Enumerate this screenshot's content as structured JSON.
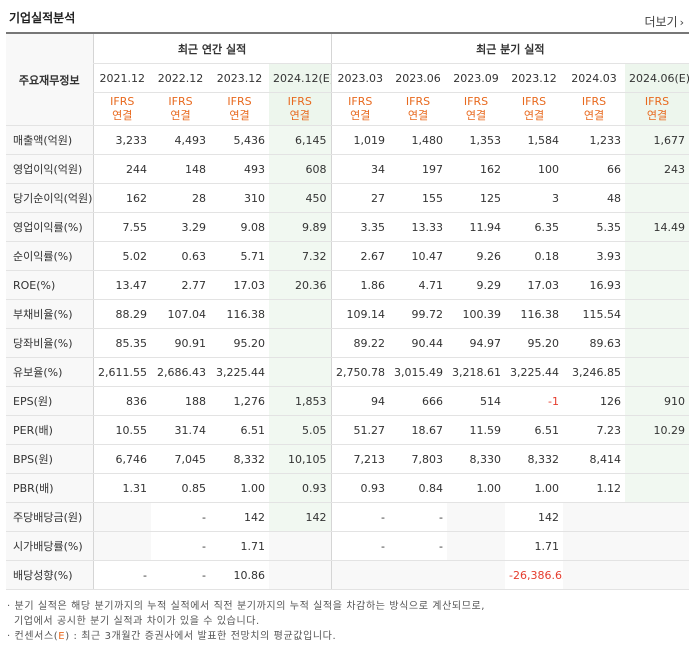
{
  "section_title": "기업실적분석",
  "more_label": "더보기",
  "more_icon": "chevron-right-icon",
  "header": {
    "row_label": "주요재무정보",
    "annual_group": "최근 연간 실적",
    "quarter_group": "최근 분기 실적",
    "annual_periods": [
      "2021.12",
      "2022.12",
      "2023.12",
      "2024.12(E)"
    ],
    "quarter_periods": [
      "2023.03",
      "2023.06",
      "2023.09",
      "2023.12",
      "2024.03",
      "2024.06(E)"
    ],
    "basis_top": "IFRS",
    "basis_bottom": "연결"
  },
  "rows": [
    {
      "label": "매출액(억원)",
      "values": [
        "3,233",
        "4,493",
        "5,436",
        "6,145",
        "1,019",
        "1,480",
        "1,353",
        "1,584",
        "1,233",
        "1,677"
      ]
    },
    {
      "label": "영업이익(억원)",
      "values": [
        "244",
        "148",
        "493",
        "608",
        "34",
        "197",
        "162",
        "100",
        "66",
        "243"
      ]
    },
    {
      "label": "당기순이익(억원)",
      "values": [
        "162",
        "28",
        "310",
        "450",
        "27",
        "155",
        "125",
        "3",
        "48",
        ""
      ]
    },
    {
      "label": "영업이익률(%)",
      "values": [
        "7.55",
        "3.29",
        "9.08",
        "9.89",
        "3.35",
        "13.33",
        "11.94",
        "6.35",
        "5.35",
        "14.49"
      ]
    },
    {
      "label": "순이익률(%)",
      "values": [
        "5.02",
        "0.63",
        "5.71",
        "7.32",
        "2.67",
        "10.47",
        "9.26",
        "0.18",
        "3.93",
        ""
      ]
    },
    {
      "label": "ROE(%)",
      "values": [
        "13.47",
        "2.77",
        "17.03",
        "20.36",
        "1.86",
        "4.71",
        "9.29",
        "17.03",
        "16.93",
        ""
      ]
    },
    {
      "label": "부채비율(%)",
      "values": [
        "88.29",
        "107.04",
        "116.38",
        "",
        "109.14",
        "99.72",
        "100.39",
        "116.38",
        "115.54",
        ""
      ]
    },
    {
      "label": "당좌비율(%)",
      "values": [
        "85.35",
        "90.91",
        "95.20",
        "",
        "89.22",
        "90.44",
        "94.97",
        "95.20",
        "89.63",
        ""
      ]
    },
    {
      "label": "유보율(%)",
      "values": [
        "2,611.55",
        "2,686.43",
        "3,225.44",
        "",
        "2,750.78",
        "3,015.49",
        "3,218.61",
        "3,225.44",
        "3,246.85",
        ""
      ]
    },
    {
      "label": "EPS(원)",
      "values": [
        "836",
        "188",
        "1,276",
        "1,853",
        "94",
        "666",
        "514",
        "-1",
        "126",
        "910"
      ]
    },
    {
      "label": "PER(배)",
      "values": [
        "10.55",
        "31.74",
        "6.51",
        "5.05",
        "51.27",
        "18.67",
        "11.59",
        "6.51",
        "7.23",
        "10.29"
      ]
    },
    {
      "label": "BPS(원)",
      "values": [
        "6,746",
        "7,045",
        "8,332",
        "10,105",
        "7,213",
        "7,803",
        "8,330",
        "8,332",
        "8,414",
        ""
      ]
    },
    {
      "label": "PBR(배)",
      "values": [
        "1.31",
        "0.85",
        "1.00",
        "0.93",
        "0.93",
        "0.84",
        "1.00",
        "1.00",
        "1.12",
        ""
      ]
    },
    {
      "label": "주당배당금(원)",
      "values": [
        "",
        "-",
        "142",
        "142",
        "-",
        "-",
        "",
        "142",
        "",
        ""
      ]
    },
    {
      "label": "시가배당률(%)",
      "values": [
        "",
        "-",
        "1.71",
        "",
        "-",
        "-",
        "",
        "1.71",
        "",
        ""
      ]
    },
    {
      "label": "배당성향(%)",
      "values": [
        "-",
        "-",
        "10.86",
        "",
        "",
        "",
        "",
        "-26,386.63",
        "",
        ""
      ]
    }
  ],
  "notes": {
    "line1": "· 분기 실적은 해당 분기까지의 누적 실적에서 직전 분기까지의 누적 실적을 차감하는 방식으로 계산되므로,",
    "line2": "기업에서 공시한 분기 실적과 차이가 있을 수 있습니다.",
    "line3_pre": "· 컨센서스(",
    "line3_e": "E",
    "line3_post": ") : 최근 3개월간 증권사에서 발표한 전망치의 평균값입니다."
  },
  "colors": {
    "ifrs": "#e8691e",
    "negative": "#e53c2d",
    "estimate_bg": "#f1f8f1"
  }
}
